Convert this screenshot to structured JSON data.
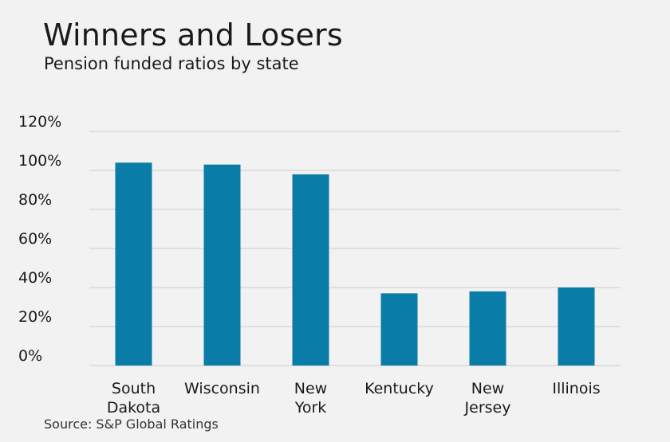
{
  "title": "Winners and Losers",
  "subtitle": "Pension funded ratios by state",
  "source": "Source: S&P Global Ratings",
  "colors": {
    "bar": "#0a7ca8",
    "grid": "#cccccc",
    "background": "#f2f2f2"
  },
  "chart_data": {
    "type": "bar",
    "title": "Winners and Losers",
    "subtitle": "Pension funded ratios by state",
    "xlabel": "",
    "ylabel": "",
    "categories": [
      [
        "South",
        "Dakota"
      ],
      [
        "Wisconsin"
      ],
      [
        "New",
        "York"
      ],
      [
        "Kentucky"
      ],
      [
        "New",
        "Jersey"
      ],
      [
        "Illinois"
      ]
    ],
    "values": [
      104,
      103,
      98,
      37,
      38,
      40
    ],
    "ylim": [
      0,
      120
    ],
    "yticks": [
      0,
      20,
      40,
      60,
      80,
      100,
      120
    ],
    "ytick_labels": [
      "0%",
      "20%",
      "40%",
      "60%",
      "80%",
      "100%",
      "120%"
    ],
    "grid": true,
    "legend": "none"
  }
}
